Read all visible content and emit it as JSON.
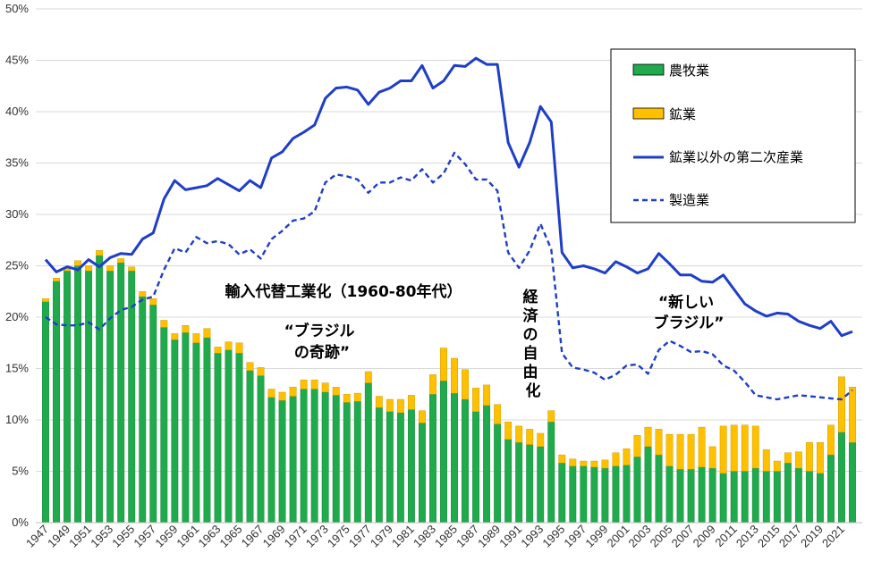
{
  "chart_data": {
    "type": "bar",
    "stacked": true,
    "title": "",
    "xlabel": "",
    "ylabel": "",
    "ylim": [
      0,
      50
    ],
    "y_ticks": [
      "0%",
      "5%",
      "10%",
      "15%",
      "20%",
      "25%",
      "30%",
      "35%",
      "40%",
      "45%",
      "50%"
    ],
    "x_start": 1947,
    "x_end": 2022,
    "x_tick_labels": [
      "1947",
      "1949",
      "1951",
      "1953",
      "1955",
      "1957",
      "1959",
      "1961",
      "1963",
      "1965",
      "1967",
      "1969",
      "1971",
      "1973",
      "1975",
      "1977",
      "1979",
      "1981",
      "1983",
      "1985",
      "1987",
      "1989",
      "1991",
      "1993",
      "1995",
      "1997",
      "1999",
      "2001",
      "2003",
      "2005",
      "2007",
      "2009",
      "2011",
      "2013",
      "2015",
      "2017",
      "2019",
      "2021"
    ],
    "grid": true,
    "legend_position": "top-right",
    "legend": [
      {
        "label": "農牧業",
        "kind": "bar",
        "color": "#1faa4b"
      },
      {
        "label": "鉱業",
        "kind": "bar",
        "color": "#ffc000"
      },
      {
        "label": "鉱業以外の第二次産業",
        "kind": "line",
        "color": "#1f3ec8"
      },
      {
        "label": "製造業",
        "kind": "dashed-line",
        "color": "#1f3ec8"
      }
    ],
    "series": [
      {
        "name": "農牧業",
        "type": "bar",
        "color": "#1faa4b",
        "values": [
          21.5,
          23.5,
          24.5,
          25.0,
          24.5,
          26.0,
          24.5,
          25.3,
          24.5,
          22.0,
          21.2,
          19.0,
          17.8,
          18.5,
          17.5,
          18.0,
          16.5,
          16.8,
          16.5,
          14.8,
          14.3,
          12.2,
          11.9,
          12.3,
          13.0,
          13.0,
          12.7,
          12.4,
          11.7,
          11.8,
          13.6,
          11.2,
          10.8,
          10.7,
          11.0,
          9.7,
          12.5,
          13.8,
          12.6,
          12.0,
          10.8,
          11.4,
          9.6,
          8.1,
          7.8,
          7.6,
          7.4,
          9.8,
          5.8,
          5.5,
          5.5,
          5.4,
          5.3,
          5.5,
          5.6,
          6.4,
          7.4,
          6.6,
          5.5,
          5.2,
          5.2,
          5.4,
          5.3,
          4.8,
          5.0,
          5.0,
          5.3,
          5.0,
          5.0,
          5.8,
          5.3,
          5.0,
          4.8,
          6.6,
          8.8,
          7.8
        ]
      },
      {
        "name": "鉱業",
        "type": "bar",
        "color": "#ffc000",
        "values": [
          0.3,
          0.3,
          0.3,
          0.5,
          0.5,
          0.5,
          0.5,
          0.4,
          0.4,
          0.5,
          0.6,
          0.7,
          0.6,
          0.7,
          0.9,
          0.9,
          0.6,
          0.8,
          1.0,
          0.8,
          0.8,
          0.8,
          0.8,
          0.9,
          0.9,
          0.9,
          0.9,
          0.8,
          0.8,
          0.8,
          1.1,
          1.1,
          1.2,
          1.3,
          1.4,
          1.2,
          1.9,
          3.2,
          3.4,
          2.9,
          2.3,
          2.0,
          1.9,
          1.7,
          1.6,
          1.5,
          1.3,
          1.1,
          0.8,
          0.7,
          0.5,
          0.6,
          0.8,
          1.3,
          1.6,
          2.1,
          1.9,
          2.5,
          3.1,
          3.4,
          3.4,
          3.9,
          2.1,
          4.6,
          4.5,
          4.5,
          4.1,
          2.1,
          1.0,
          1.0,
          1.6,
          2.8,
          3.0,
          2.9,
          5.4,
          5.4
        ]
      },
      {
        "name": "鉱業以外の第二次産業",
        "type": "line",
        "color": "#1f3ec8",
        "values": [
          25.6,
          24.4,
          24.9,
          24.6,
          25.6,
          24.9,
          25.8,
          26.2,
          26.1,
          27.6,
          28.2,
          31.5,
          33.3,
          32.4,
          32.6,
          32.8,
          33.5,
          32.9,
          32.3,
          33.3,
          32.6,
          35.5,
          36.1,
          37.4,
          38.0,
          38.7,
          41.3,
          42.3,
          42.4,
          42.1,
          40.7,
          41.9,
          42.3,
          43.0,
          43.0,
          44.5,
          42.3,
          43.0,
          44.5,
          44.4,
          45.2,
          44.6,
          44.6,
          37.0,
          34.6,
          37.0,
          40.5,
          39.0,
          26.3,
          24.8,
          25.0,
          24.7,
          24.3,
          25.4,
          24.9,
          24.3,
          24.7,
          26.2,
          25.2,
          24.1,
          24.1,
          23.5,
          23.4,
          24.1,
          22.7,
          21.3,
          20.6,
          20.1,
          20.4,
          20.3,
          19.6,
          19.2,
          18.9,
          19.6,
          18.2,
          18.6
        ]
      },
      {
        "name": "製造業",
        "type": "dashed-line",
        "color": "#1f3ec8",
        "values": [
          20.0,
          19.3,
          19.2,
          19.2,
          19.5,
          18.8,
          19.9,
          20.7,
          21.0,
          21.7,
          22.0,
          24.6,
          26.7,
          26.3,
          27.8,
          27.2,
          27.4,
          27.1,
          26.1,
          26.6,
          25.7,
          27.6,
          28.4,
          29.4,
          29.6,
          30.3,
          33.1,
          33.9,
          33.7,
          33.4,
          32.1,
          33.1,
          33.1,
          33.6,
          33.3,
          34.4,
          33.1,
          34.0,
          36.0,
          34.9,
          33.4,
          33.4,
          32.3,
          26.3,
          24.8,
          26.5,
          29.1,
          26.6,
          16.5,
          15.1,
          14.9,
          14.6,
          13.9,
          14.4,
          15.3,
          15.4,
          14.5,
          16.8,
          17.7,
          17.2,
          16.6,
          16.7,
          16.4,
          15.3,
          14.8,
          13.7,
          12.4,
          12.2,
          12.0,
          12.2,
          12.4,
          12.3,
          12.2,
          12.1,
          12.0,
          12.9
        ]
      }
    ],
    "annotations": [
      {
        "lines": [
          "輸入代替工業化（1960-80年代）"
        ]
      },
      {
        "lines": [
          "“ブラジル",
          "の奇跡”"
        ]
      },
      {
        "lines": [
          "経",
          "済",
          "の",
          "自",
          "由",
          "化"
        ]
      },
      {
        "lines": [
          "“新しい",
          "ブラジル”"
        ]
      }
    ]
  }
}
